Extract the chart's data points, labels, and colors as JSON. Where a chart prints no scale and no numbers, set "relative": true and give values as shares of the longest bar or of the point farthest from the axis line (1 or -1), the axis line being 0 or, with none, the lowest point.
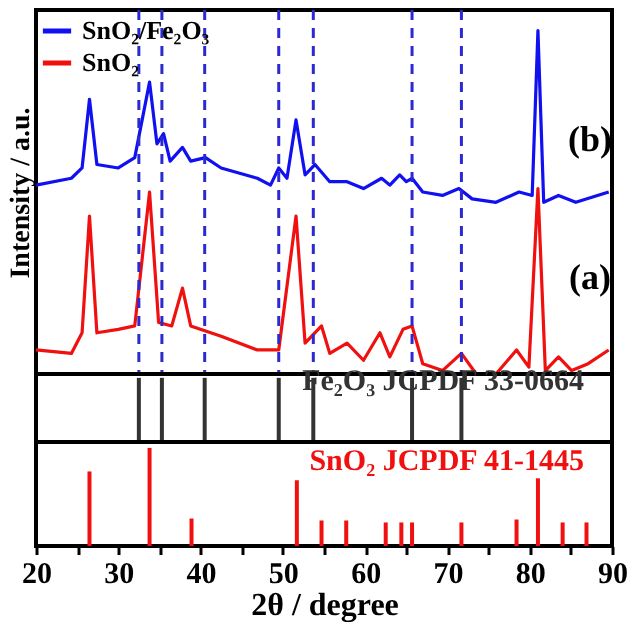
{
  "chart_data": [
    {
      "type": "line",
      "ylabel": "Intensity / a.u.",
      "relative": true,
      "legend": "top left",
      "tick_labels": false,
      "xlim": [
        20,
        90
      ],
      "series": [
        {
          "name": "SnO₂/Fe₂O₃",
          "color": "#1010f0",
          "x": [
            20,
            24.3,
            25.6,
            26.5,
            27.4,
            30.0,
            32.0,
            33.8,
            34.7,
            35.5,
            36.3,
            37.8,
            38.8,
            40.6,
            42.5,
            46.9,
            48.5,
            49.5,
            50.5,
            51.6,
            52.7,
            53.9,
            55.7,
            57.8,
            59.8,
            62.0,
            63.0,
            64.2,
            65.0,
            65.7,
            67.0,
            69.4,
            71.4,
            73.0,
            75.9,
            78.7,
            80.3,
            81.0,
            81.7,
            83.5,
            85.6,
            89.6
          ],
          "values": [
            0.55,
            0.57,
            0.6,
            0.8,
            0.61,
            0.6,
            0.63,
            0.85,
            0.67,
            0.7,
            0.62,
            0.66,
            0.62,
            0.63,
            0.6,
            0.57,
            0.55,
            0.6,
            0.57,
            0.74,
            0.58,
            0.61,
            0.56,
            0.56,
            0.54,
            0.57,
            0.55,
            0.58,
            0.56,
            0.57,
            0.53,
            0.52,
            0.54,
            0.51,
            0.5,
            0.53,
            0.52,
            1,
            0.5,
            0.52,
            0.5,
            0.53
          ]
        },
        {
          "name": "SnO₂",
          "color": "#f01010",
          "x": [
            20,
            24.3,
            25.6,
            26.5,
            27.4,
            30.0,
            32.0,
            33.8,
            34.9,
            36.5,
            37.8,
            38.8,
            42.5,
            46.9,
            49.5,
            51.6,
            52.7,
            54.7,
            55.7,
            57.8,
            59.8,
            61.8,
            63.0,
            64.6,
            65.7,
            67.0,
            69.4,
            71.7,
            73.5,
            75.9,
            78.4,
            79.9,
            81.0,
            81.9,
            83.5,
            85.1,
            87.1,
            89.6
          ],
          "values": [
            0.07,
            0.06,
            0.12,
            0.46,
            0.12,
            0.13,
            0.14,
            0.53,
            0.15,
            0.14,
            0.25,
            0.14,
            0.11,
            0.07,
            0.07,
            0.46,
            0.09,
            0.14,
            0.06,
            0.09,
            0.04,
            0.12,
            0.05,
            0.13,
            0.14,
            0.03,
            0.01,
            0.06,
            0,
            0,
            0.07,
            0.02,
            0.54,
            0.01,
            0.05,
            0.01,
            0.03,
            0.07
          ]
        }
      ],
      "ref_lines": [
        {
          "axis": "x",
          "value": 32.5,
          "color": "#2a2ad0",
          "line_style": "dashed"
        },
        {
          "axis": "x",
          "value": 35.3,
          "color": "#2a2ad0",
          "line_style": "dashed"
        },
        {
          "axis": "x",
          "value": 40.5,
          "color": "#2a2ad0",
          "line_style": "dashed"
        },
        {
          "axis": "x",
          "value": 49.5,
          "color": "#2a2ad0",
          "line_style": "dashed"
        },
        {
          "axis": "x",
          "value": 53.7,
          "color": "#2a2ad0",
          "line_style": "dashed"
        },
        {
          "axis": "x",
          "value": 65.7,
          "color": "#2a2ad0",
          "line_style": "dashed"
        },
        {
          "axis": "x",
          "value": 71.7,
          "color": "#2a2ad0",
          "line_style": "dashed"
        }
      ],
      "annotations": [
        "(b)",
        "(a)"
      ]
    },
    {
      "type": "bar",
      "title": "Fe₂O₃ JCPDF 33-0664",
      "relative": true,
      "tick_labels": false,
      "xlim": [
        20,
        90
      ],
      "x": [
        32.5,
        35.3,
        40.5,
        49.5,
        53.7,
        65.7,
        71.7
      ],
      "values": [
        1,
        1,
        1,
        1,
        1,
        1,
        1
      ],
      "color": "#333333"
    },
    {
      "type": "bar",
      "title": "SnO₂ JCPDF 41-1445",
      "relative": true,
      "tick_labels": "x",
      "xlabel": "2θ / degree",
      "xlim": [
        20,
        90
      ],
      "xticks": [
        20,
        {
          "value": 25,
          "label": null
        },
        30,
        {
          "value": 35,
          "label": null
        },
        40,
        {
          "value": 45,
          "label": null
        },
        50,
        {
          "value": 55,
          "label": null
        },
        60,
        {
          "value": 65,
          "label": null
        },
        70,
        {
          "value": 75,
          "label": null
        },
        80,
        {
          "value": 85,
          "label": null
        },
        90
      ],
      "x": [
        26.5,
        33.8,
        38.9,
        51.7,
        54.7,
        57.7,
        62.5,
        64.4,
        65.7,
        71.7,
        78.4,
        81.0,
        84.0,
        86.9
      ],
      "values": [
        0.76,
        1,
        0.28,
        0.67,
        0.26,
        0.26,
        0.24,
        0.24,
        0.24,
        0.24,
        0.27,
        0.69,
        0.24,
        0.24
      ],
      "color": "#f01010"
    }
  ]
}
